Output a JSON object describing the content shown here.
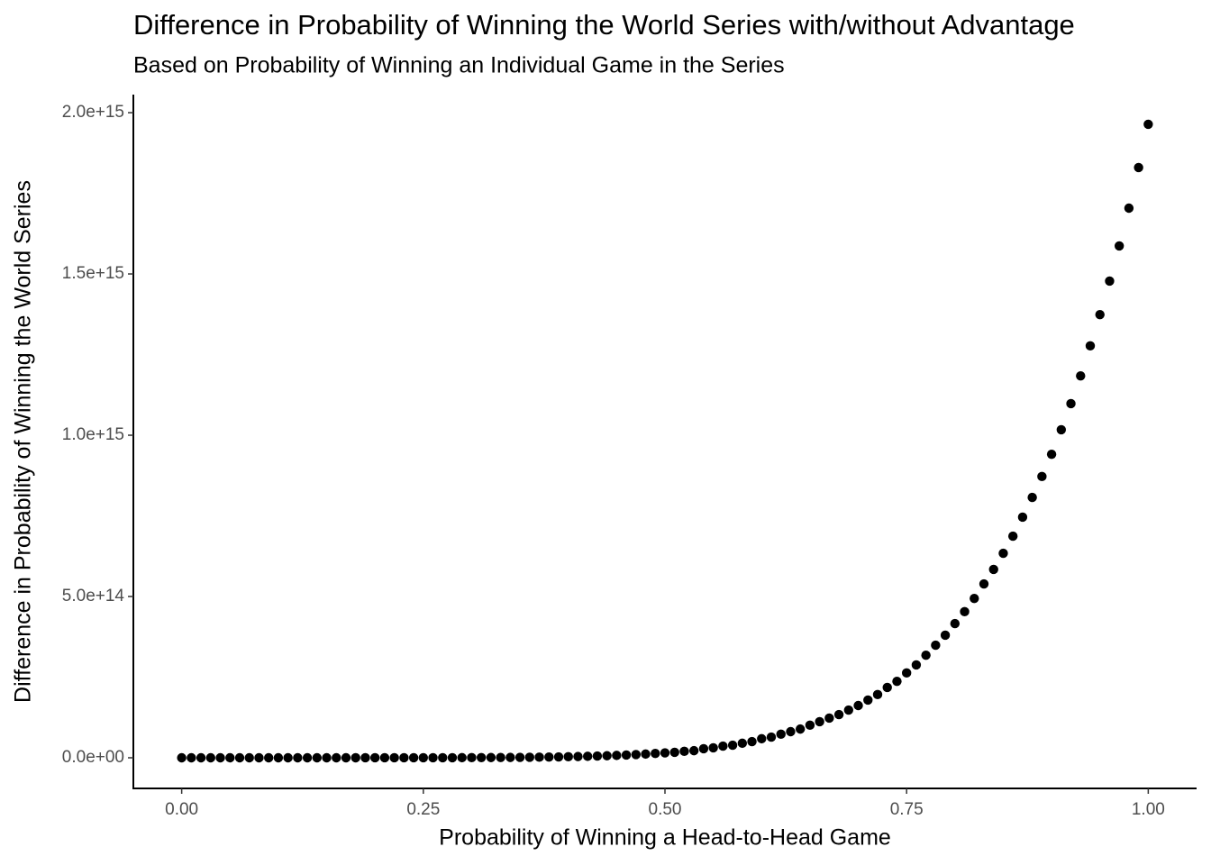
{
  "chart_data": {
    "type": "scatter",
    "title": "Difference in Probability of Winning the World Series with/without Advantage",
    "subtitle": "Based on Probability of Winning an Individual Game in the Series",
    "x_label": "Probability of Winning a Head-to-Head Game",
    "y_label": "Difference in Probability of Winning the World Series",
    "color": "#000000",
    "grid": false,
    "xlim": [
      -0.05,
      1.05
    ],
    "ylim": [
      -95000000000000.0,
      2056000000000000.0
    ],
    "xticks": [
      {
        "value": 0,
        "label": "0.00"
      },
      0.25,
      {
        "value": 0.5,
        "label": "0.50"
      },
      0.75,
      {
        "value": 1,
        "label": "1.00"
      }
    ],
    "yticks": [
      {
        "value": 0,
        "label": "0.0e+00"
      },
      {
        "value": 500000000000000.0,
        "label": "5.0e+14"
      },
      {
        "value": 1000000000000000.0,
        "label": "1.0e+15"
      },
      {
        "value": 1500000000000000.0,
        "label": "1.5e+15"
      },
      {
        "value": 2000000000000000.0,
        "label": "2.0e+15"
      }
    ],
    "x": [
      0,
      0.01,
      0.02,
      0.03,
      0.04,
      0.05,
      0.06,
      0.07,
      0.08,
      0.09,
      0.1,
      0.11,
      0.12,
      0.13,
      0.14,
      0.15,
      0.16,
      0.17,
      0.18,
      0.19,
      0.2,
      0.21,
      0.22,
      0.23,
      0.24,
      0.25,
      0.26,
      0.27,
      0.28,
      0.29,
      0.3,
      0.31,
      0.32,
      0.33,
      0.34,
      0.35,
      0.36,
      0.37,
      0.38,
      0.39,
      0.4,
      0.41,
      0.42,
      0.43,
      0.44,
      0.45,
      0.46,
      0.47,
      0.48,
      0.49,
      0.5,
      0.51,
      0.52,
      0.53,
      0.54,
      0.55,
      0.56,
      0.57,
      0.58,
      0.59,
      0.6,
      0.61,
      0.62,
      0.63,
      0.64,
      0.65,
      0.66,
      0.67,
      0.68,
      0.69,
      0.7,
      0.71,
      0.72,
      0.73,
      0.74,
      0.75,
      0.76,
      0.77,
      0.78,
      0.79,
      0.8,
      0.81,
      0.82,
      0.83,
      0.84,
      0.85,
      0.86,
      0.87,
      0.88,
      0.89,
      0.9,
      0.91,
      0.92,
      0.93,
      0.94,
      0.95,
      0.96,
      0.97,
      0.98,
      0.99,
      1
    ],
    "values": [
      0,
      19.6,
      2514,
      42950,
      321800,
      1534000.0,
      5500000.0,
      16170000.0,
      41200000.0,
      93900000.0,
      196400000.0,
      383000000.0,
      704000000.0,
      1230000000.0,
      2070000000.0,
      3360000000.0,
      5270000000.0,
      8060000000.0,
      12000000000.0,
      17600000000.0,
      25100000000.0,
      35400000000.0,
      49000000000.0,
      66900000000.0,
      90100000000.0,
      120000000000.0,
      158000000000.0,
      205000000000.0,
      265000000000.0,
      339000000000.0,
      430000000000.0,
      540000000000.0,
      675000000000.0,
      837000000000.0,
      1030000000000.0,
      1260000000000.0,
      1540000000000.0,
      1860000000000.0,
      2250000000000.0,
      2690000000000.0,
      3220000000000.0,
      3830000000000.0,
      4530000000000.0,
      5340000000000.0,
      6270000000000.0,
      7340000000000.0,
      8560000000000.0,
      9950000000000.0,
      11500000000000.0,
      13300000000000.0,
      15300000000000.0,
      17000000000000.0,
      20000000000000.0,
      22000000000000.0,
      28000000000000.0,
      31000000000000.0,
      36000000000000.0,
      39000000000000.0,
      45000000000000.0,
      50000000000000.0,
      59000000000000.0,
      64000000000000.0,
      73000000000000.0,
      81000000000000.0,
      89000000000000.0,
      101000000000000.0,
      112000000000000.0,
      123000000000000.0,
      134000000000000.0,
      148000000000000.0,
      162000000000000.0,
      179000000000000.0,
      196000000000000.0,
      218000000000000.0,
      237000000000000.0,
      263000000000000.0,
      288000000000000.0,
      318000000000000.0,
      349000000000000.0,
      380000000000000.0,
      416000000000000.0,
      453000000000000.0,
      494000000000000.0,
      539000000000000.0,
      584000000000000.0,
      634000000000000.0,
      687000000000000.0,
      746000000000000.0,
      807000000000000.0,
      872000000000000.0,
      941000000000000.0,
      1017000000000000.0,
      1098000000000000.0,
      1184000000000000.0,
      1277000000000000.0,
      1374000000000000.0,
      1478000000000000.0,
      1587000000000000.0,
      1704000000000000.0,
      1830000000000000.0,
      1964000000000000.0
    ]
  }
}
